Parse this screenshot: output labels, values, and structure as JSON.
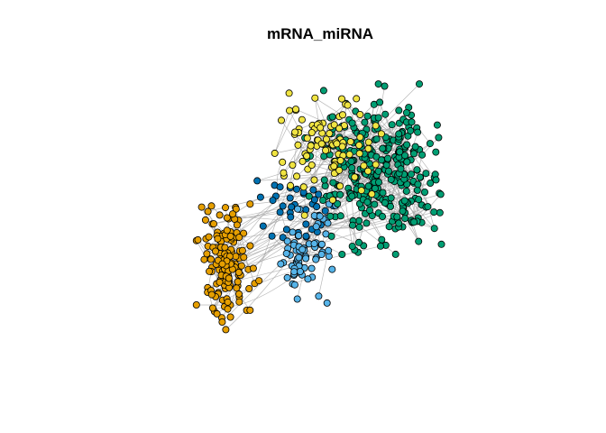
{
  "plot": {
    "title": "mRNA_miRNA"
  },
  "style": {
    "background": "#ffffff",
    "edge_color": "#a6a6a6",
    "node_stroke": "#000000"
  },
  "clusters": [
    {
      "id": "orange-cluster",
      "color": "#E69F00"
    },
    {
      "id": "yellow-cluster",
      "color": "#F0E442"
    },
    {
      "id": "green-cluster",
      "color": "#009E73"
    },
    {
      "id": "lightblue-cluster",
      "color": "#56B4E9"
    },
    {
      "id": "darkblue-cluster",
      "color": "#0072B2"
    }
  ]
}
